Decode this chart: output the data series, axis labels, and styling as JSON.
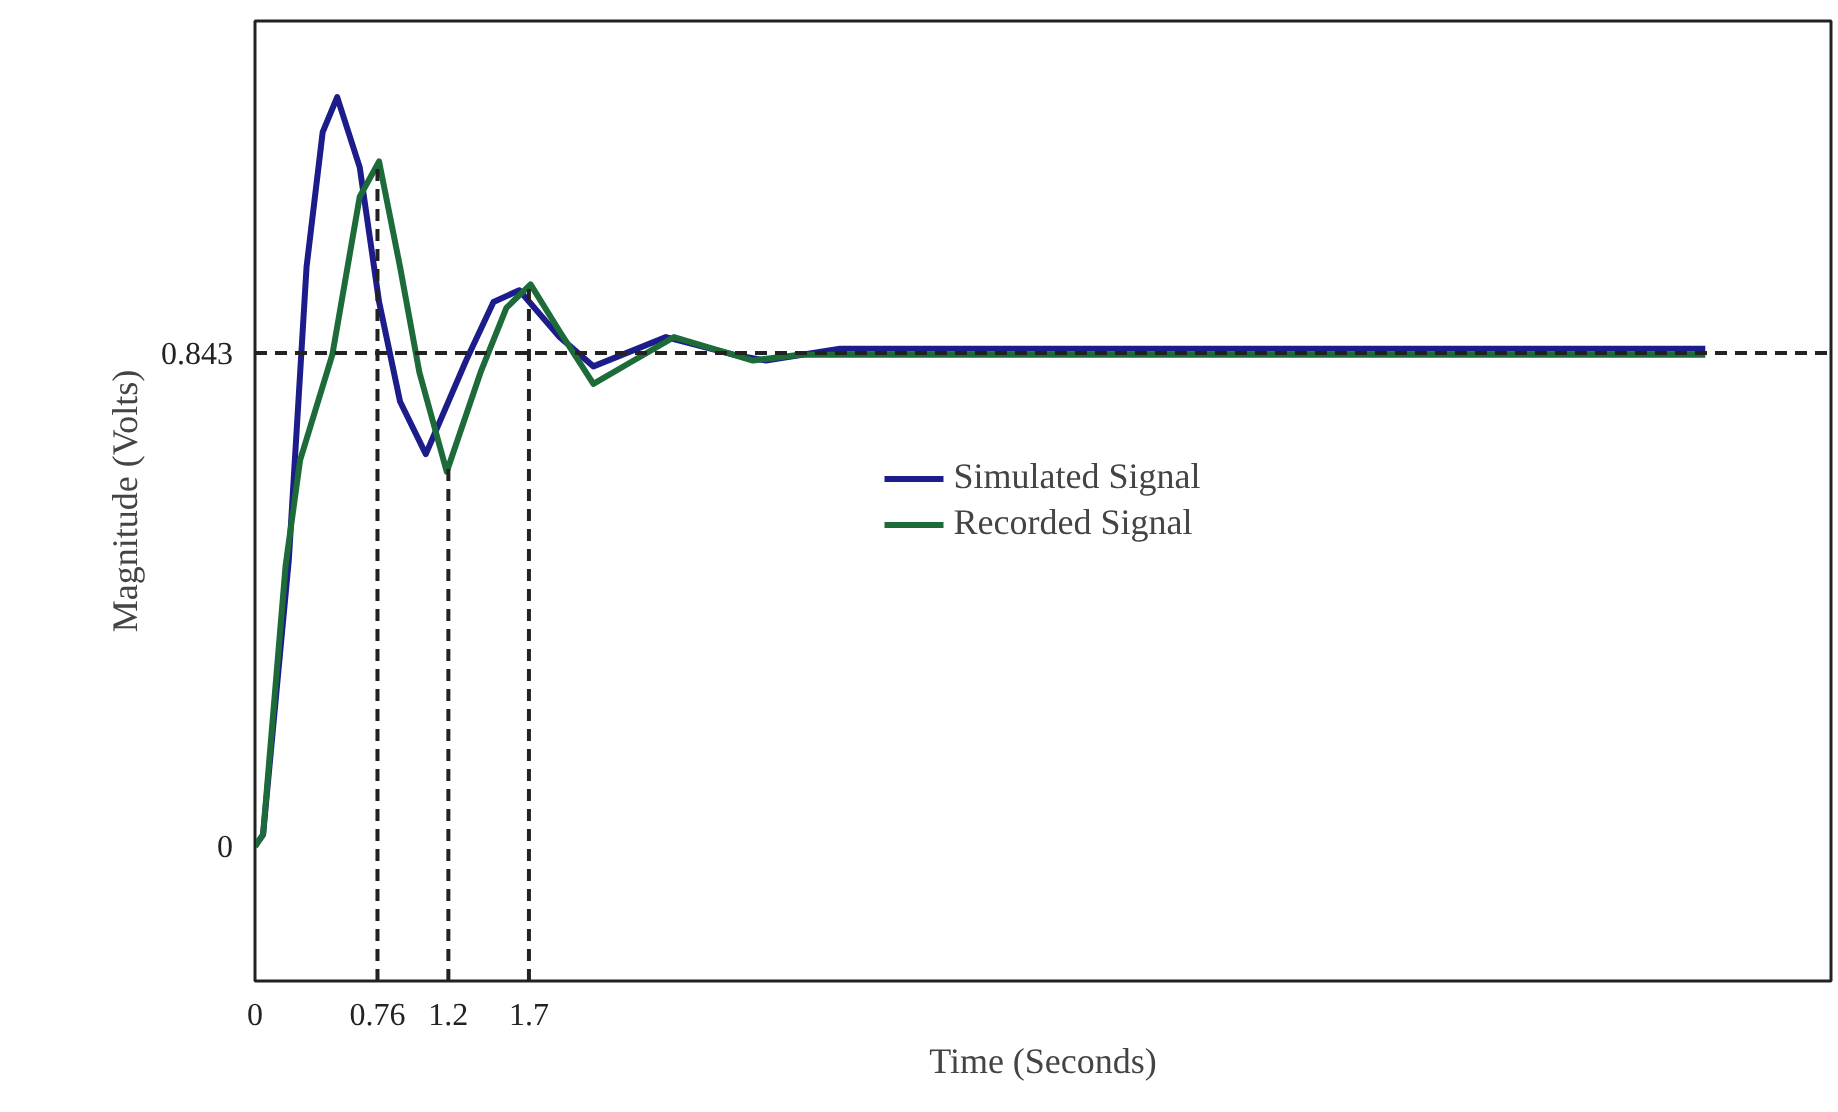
{
  "chart_data": {
    "type": "line",
    "xlabel": "Time (Seconds)",
    "ylabel": "Magnitude (Volts)",
    "xlim": [
      0,
      9.78
    ],
    "ylim": [
      -0.23,
      1.41
    ],
    "xticks": [
      0,
      0.76,
      1.2,
      1.7
    ],
    "yticks": [
      0,
      0.843
    ],
    "grid": false,
    "legend": "center",
    "line_style": "solid",
    "series": [
      {
        "name": "Simulated Signal",
        "color": "#1c1c8a",
        "x": [
          0,
          0.05,
          0.21,
          0.32,
          0.42,
          0.51,
          0.65,
          0.77,
          0.9,
          1.06,
          1.31,
          1.48,
          1.64,
          1.89,
          2.1,
          2.55,
          2.97,
          3.17,
          3.63,
          9.0
        ],
        "values": [
          0,
          0.02,
          0.49,
          0.99,
          1.22,
          1.28,
          1.16,
          0.93,
          0.76,
          0.67,
          0.83,
          0.93,
          0.95,
          0.87,
          0.82,
          0.87,
          0.84,
          0.83,
          0.85,
          0.85
        ]
      },
      {
        "name": "Recorded Signal",
        "color": "#1e6b3a",
        "x": [
          0,
          0.05,
          0.19,
          0.28,
          0.48,
          0.65,
          0.77,
          0.9,
          1.02,
          1.19,
          1.4,
          1.56,
          1.71,
          1.89,
          2.1,
          2.35,
          2.6,
          3.09,
          3.38,
          9.0
        ],
        "values": [
          0,
          0.02,
          0.48,
          0.66,
          0.84,
          1.11,
          1.17,
          0.99,
          0.81,
          0.64,
          0.81,
          0.92,
          0.96,
          0.88,
          0.79,
          0.83,
          0.87,
          0.83,
          0.84,
          0.84
        ]
      }
    ],
    "ref_lines": [
      {
        "axis": "y",
        "value": 0.843,
        "line_style": "dashed"
      },
      {
        "axis": "x",
        "value": 0.76,
        "line_style": "dashed"
      },
      {
        "axis": "x",
        "value": 1.2,
        "line_style": "dashed"
      },
      {
        "axis": "x",
        "value": 1.7,
        "line_style": "dashed"
      }
    ]
  }
}
